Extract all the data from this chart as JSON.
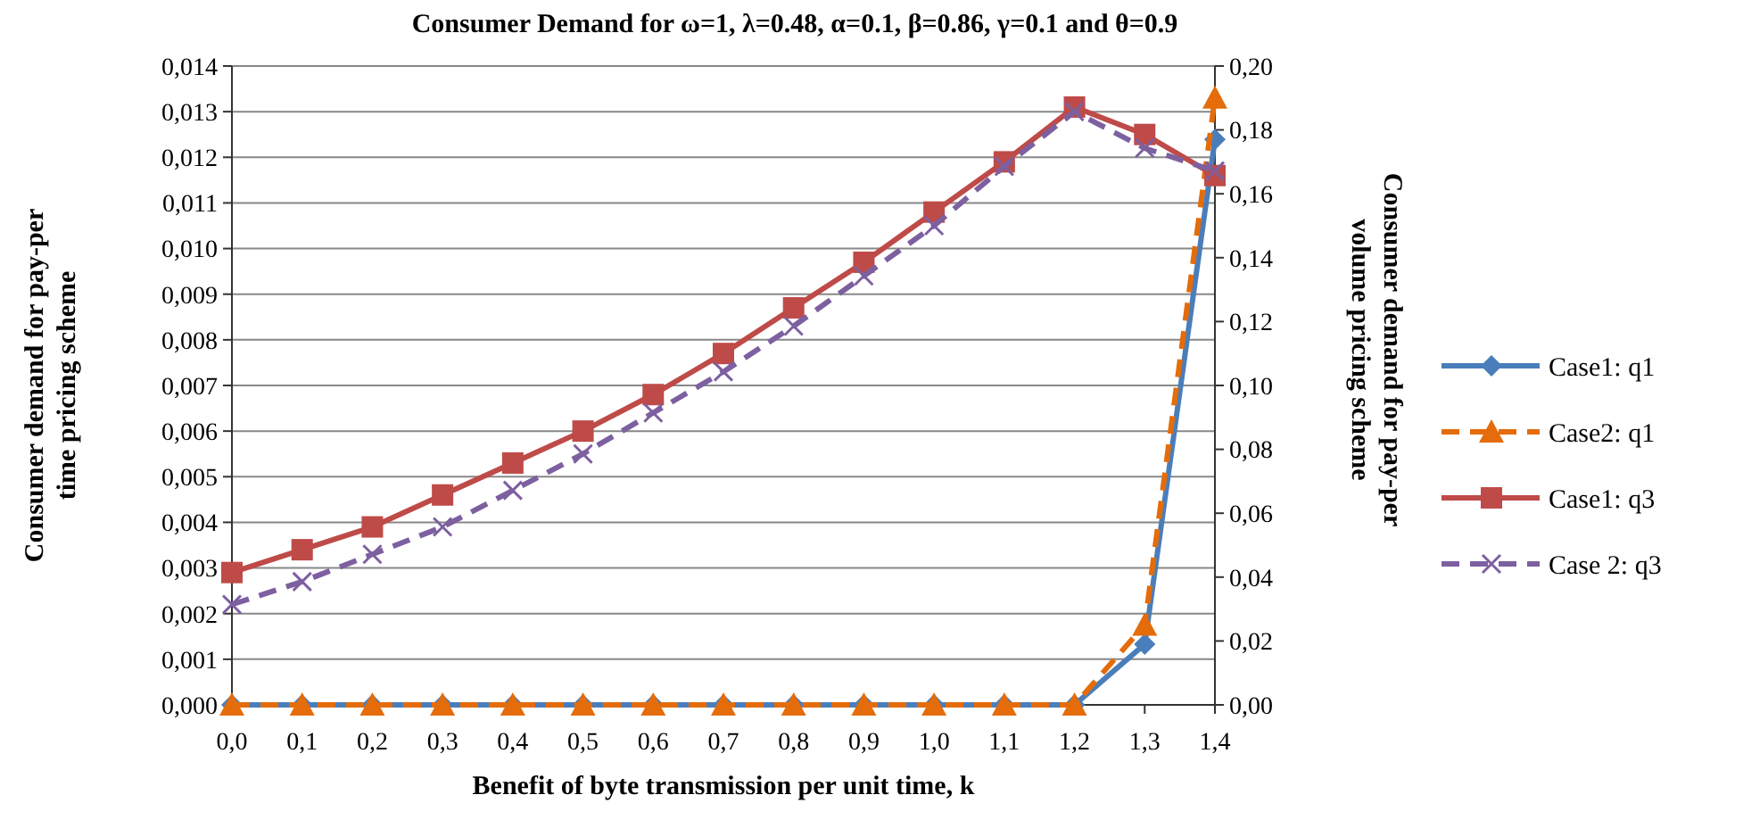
{
  "chart_data": {
    "type": "line",
    "title": "Consumer Demand for ω=1, λ=0.48, α=0.1, β=0.86, γ=0.1 and θ=0.9",
    "xlabel": "Benefit of byte transmission per unit time, k",
    "ylabel": "Consumer demand for pay-per time pricing scheme",
    "y2label": "Consumer demand for pay-per volume pricing scheme",
    "categories": [
      "0,0",
      "0,1",
      "0,2",
      "0,3",
      "0,4",
      "0,5",
      "0,6",
      "0,7",
      "0,8",
      "0,9",
      "1,0",
      "1,1",
      "1,2",
      "1,3",
      "1,4"
    ],
    "series": [
      {
        "name": "Case1: q1",
        "color": "#4a7ebb",
        "marker": "diamond",
        "line_style": "solid",
        "axis": "y2",
        "values": [
          0,
          0,
          0,
          0,
          0,
          0,
          0,
          0,
          0,
          0,
          0,
          0,
          0,
          0.019,
          0.177
        ]
      },
      {
        "name": "Case2: q1",
        "color": "#e46c0a",
        "marker": "triangle",
        "line_style": "dashed",
        "axis": "y2",
        "values": [
          0,
          0,
          0,
          0,
          0,
          0,
          0,
          0,
          0,
          0,
          0,
          0,
          0,
          0.025,
          0.19
        ]
      },
      {
        "name": "Case1: q3",
        "color": "#be4b48",
        "marker": "square",
        "line_style": "solid",
        "values": [
          0.0029,
          0.0034,
          0.0039,
          0.0046,
          0.0053,
          0.006,
          0.0068,
          0.0077,
          0.0087,
          0.0097,
          0.0108,
          0.0119,
          0.0131,
          0.0125,
          0.0116
        ]
      },
      {
        "name": "Case 2: q3",
        "color": "#7d60a0",
        "marker": "cross",
        "line_style": "dashed",
        "values": [
          0.0022,
          0.0027,
          0.0033,
          0.0039,
          0.0047,
          0.0055,
          0.0064,
          0.0073,
          0.0083,
          0.0094,
          0.0105,
          0.0118,
          0.013,
          0.0122,
          0.0117
        ]
      }
    ],
    "ylim": [
      0,
      0.014
    ],
    "yticks": [
      {
        "value": 0,
        "label": "0,000"
      },
      {
        "value": 0.001,
        "label": "0,001"
      },
      {
        "value": 0.002,
        "label": "0,002"
      },
      {
        "value": 0.003,
        "label": "0,003"
      },
      {
        "value": 0.004,
        "label": "0,004"
      },
      {
        "value": 0.005,
        "label": "0,005"
      },
      {
        "value": 0.006,
        "label": "0,006"
      },
      {
        "value": 0.007,
        "label": "0,007"
      },
      {
        "value": 0.008,
        "label": "0,008"
      },
      {
        "value": 0.009,
        "label": "0,009"
      },
      {
        "value": 0.01,
        "label": "0,010"
      },
      {
        "value": 0.011,
        "label": "0,011"
      },
      {
        "value": 0.012,
        "label": "0,012"
      },
      {
        "value": 0.013,
        "label": "0,013"
      },
      {
        "value": 0.014,
        "label": "0,014"
      }
    ],
    "y2lim": [
      0,
      0.2
    ],
    "y2ticks": [
      {
        "value": 0,
        "label": "0,00"
      },
      {
        "value": 0.02,
        "label": "0,02"
      },
      {
        "value": 0.04,
        "label": "0,04"
      },
      {
        "value": 0.06,
        "label": "0,06"
      },
      {
        "value": 0.08,
        "label": "0,08"
      },
      {
        "value": 0.1,
        "label": "0,10"
      },
      {
        "value": 0.12,
        "label": "0,12"
      },
      {
        "value": 0.14,
        "label": "0,14"
      },
      {
        "value": 0.16,
        "label": "0,16"
      },
      {
        "value": 0.18,
        "label": "0,18"
      },
      {
        "value": 0.2,
        "label": "0,20"
      }
    ],
    "grid": "y",
    "legend": "right"
  }
}
